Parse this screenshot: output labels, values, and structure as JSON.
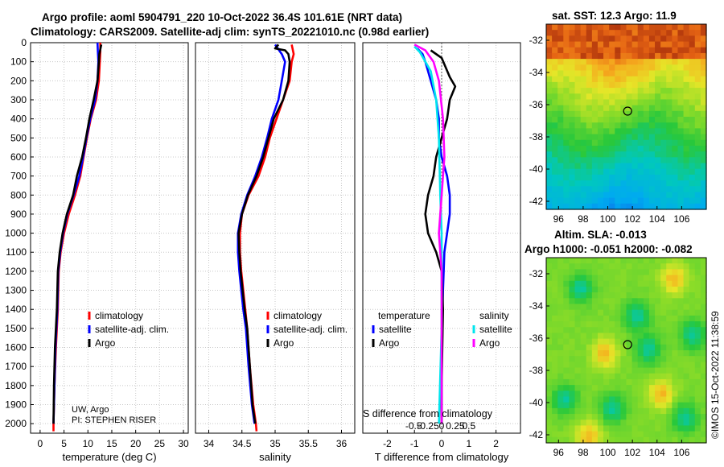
{
  "header": {
    "line1": "Argo profile: aoml 5904791_220 10-Oct-2022 36.4S 101.61E (NRT data)",
    "line2": "Climatology: CARS2009. Satellite-adj clim: synTS_20221010.nc (0.98d earlier)"
  },
  "colors": {
    "climatology": "#ff0000",
    "satellite": "#0000ff",
    "argo": "#000000",
    "cyan": "#00e5ee",
    "magenta": "#ff00ff"
  },
  "chart_data": [
    {
      "id": "temperature",
      "type": "line",
      "xlabel": "temperature (deg C)",
      "ylabel": "",
      "xlim": [
        -2,
        31
      ],
      "ylim": [
        2050,
        0
      ],
      "xticks": [
        0,
        5,
        10,
        15,
        20,
        25,
        30
      ],
      "yticks": [
        0,
        100,
        200,
        300,
        400,
        500,
        600,
        700,
        800,
        900,
        1000,
        1100,
        1200,
        1300,
        1400,
        1500,
        1600,
        1700,
        1800,
        1900,
        2000
      ],
      "legend": [
        "climatology",
        "satellite-adj. clim.",
        "Argo"
      ],
      "annotation": [
        "UW, Argo",
        "PI: STEPHEN RISER"
      ],
      "series": [
        {
          "name": "climatology",
          "color": "#ff0000",
          "points": [
            [
              12.6,
              0
            ],
            [
              12.6,
              50
            ],
            [
              12.5,
              100
            ],
            [
              12.3,
              200
            ],
            [
              11.7,
              300
            ],
            [
              10.6,
              400
            ],
            [
              9.8,
              500
            ],
            [
              9.1,
              600
            ],
            [
              8.4,
              700
            ],
            [
              7.3,
              800
            ],
            [
              6.0,
              900
            ],
            [
              5.0,
              1000
            ],
            [
              4.3,
              1100
            ],
            [
              3.9,
              1200
            ],
            [
              3.7,
              1400
            ],
            [
              3.3,
              1600
            ],
            [
              3.0,
              1800
            ],
            [
              2.8,
              2000
            ],
            [
              2.8,
              2040
            ]
          ]
        },
        {
          "name": "satellite-adj. clim.",
          "color": "#0000ff",
          "points": [
            [
              12.0,
              0
            ],
            [
              12.1,
              50
            ],
            [
              12.2,
              100
            ],
            [
              12.0,
              200
            ],
            [
              11.5,
              300
            ],
            [
              10.5,
              400
            ],
            [
              9.7,
              500
            ],
            [
              9.0,
              600
            ],
            [
              8.2,
              700
            ],
            [
              7.0,
              800
            ],
            [
              5.7,
              900
            ],
            [
              4.8,
              1000
            ],
            [
              4.2,
              1100
            ],
            [
              3.8,
              1200
            ],
            [
              3.6,
              1400
            ],
            [
              3.2,
              1600
            ],
            [
              3.0,
              1800
            ],
            [
              2.8,
              2000
            ]
          ]
        },
        {
          "name": "Argo",
          "color": "#000000",
          "points": [
            [
              12.8,
              10
            ],
            [
              12.4,
              60
            ],
            [
              12.3,
              100
            ],
            [
              12.0,
              200
            ],
            [
              11.2,
              300
            ],
            [
              10.3,
              400
            ],
            [
              9.6,
              500
            ],
            [
              8.8,
              600
            ],
            [
              7.7,
              700
            ],
            [
              6.9,
              800
            ],
            [
              5.6,
              900
            ],
            [
              4.7,
              1000
            ],
            [
              4.1,
              1100
            ],
            [
              3.7,
              1200
            ],
            [
              3.5,
              1400
            ],
            [
              3.1,
              1600
            ],
            [
              2.9,
              1800
            ],
            [
              2.8,
              2000
            ]
          ]
        }
      ]
    },
    {
      "id": "salinity",
      "type": "line",
      "xlabel": "salinity",
      "xlim": [
        33.8,
        36.2
      ],
      "ylim": [
        2050,
        0
      ],
      "xticks": [
        34,
        34.5,
        35,
        35.5,
        36
      ],
      "legend": [
        "climatology",
        "satellite-adj. clim.",
        "Argo"
      ],
      "series": [
        {
          "name": "climatology",
          "color": "#ff0000",
          "points": [
            [
              35.25,
              10
            ],
            [
              35.28,
              60
            ],
            [
              35.25,
              100
            ],
            [
              35.22,
              200
            ],
            [
              35.12,
              300
            ],
            [
              35.02,
              400
            ],
            [
              34.92,
              500
            ],
            [
              34.85,
              600
            ],
            [
              34.75,
              700
            ],
            [
              34.6,
              800
            ],
            [
              34.5,
              900
            ],
            [
              34.47,
              1000
            ],
            [
              34.47,
              1100
            ],
            [
              34.49,
              1200
            ],
            [
              34.52,
              1300
            ],
            [
              34.55,
              1400
            ],
            [
              34.58,
              1500
            ],
            [
              34.62,
              1700
            ],
            [
              34.67,
              1900
            ],
            [
              34.71,
              2000
            ],
            [
              34.72,
              2040
            ]
          ]
        },
        {
          "name": "satellite-adj. clim.",
          "color": "#0000ff",
          "points": [
            [
              35.0,
              10
            ],
            [
              35.1,
              60
            ],
            [
              35.15,
              100
            ],
            [
              35.1,
              200
            ],
            [
              35.05,
              300
            ],
            [
              34.95,
              400
            ],
            [
              34.88,
              500
            ],
            [
              34.8,
              600
            ],
            [
              34.7,
              700
            ],
            [
              34.58,
              800
            ],
            [
              34.49,
              900
            ],
            [
              34.44,
              1000
            ],
            [
              34.44,
              1100
            ],
            [
              34.46,
              1200
            ],
            [
              34.49,
              1300
            ],
            [
              34.52,
              1400
            ],
            [
              34.56,
              1500
            ],
            [
              34.6,
              1700
            ],
            [
              34.65,
              1900
            ],
            [
              34.69,
              2000
            ]
          ]
        },
        {
          "name": "Argo",
          "color": "#000000",
          "points": [
            [
              35.05,
              10
            ],
            [
              35.0,
              30
            ],
            [
              35.15,
              40
            ],
            [
              35.2,
              60
            ],
            [
              35.22,
              100
            ],
            [
              35.2,
              200
            ],
            [
              35.12,
              300
            ],
            [
              34.98,
              400
            ],
            [
              34.9,
              500
            ],
            [
              34.82,
              600
            ],
            [
              34.72,
              700
            ],
            [
              34.59,
              800
            ],
            [
              34.5,
              900
            ],
            [
              34.45,
              1000
            ],
            [
              34.46,
              1100
            ],
            [
              34.48,
              1200
            ],
            [
              34.51,
              1300
            ],
            [
              34.54,
              1400
            ],
            [
              34.58,
              1500
            ],
            [
              34.62,
              1700
            ],
            [
              34.66,
              1900
            ],
            [
              34.7,
              2000
            ]
          ]
        }
      ]
    },
    {
      "id": "difference",
      "type": "line",
      "xlabel": "T difference from climatology",
      "xlabel_top": "S difference from climatology",
      "xlim": [
        -2.9,
        2.9
      ],
      "ylim": [
        2050,
        0
      ],
      "xticks": [
        -2,
        -1,
        0,
        1,
        2
      ],
      "xticks_s": [
        "-0.5",
        "-0.25",
        "0",
        "0.25",
        "0.5"
      ],
      "legend_temperature": {
        "title": "temperature",
        "items": [
          "satellite",
          "Argo"
        ]
      },
      "legend_salinity": {
        "title": "salinity",
        "items": [
          "satellite",
          "Argo"
        ]
      },
      "series": [
        {
          "name": "temperature satellite",
          "color": "#0000ff",
          "points": [
            [
              -0.9,
              30
            ],
            [
              -0.7,
              60
            ],
            [
              -0.6,
              100
            ],
            [
              -0.4,
              200
            ],
            [
              -0.2,
              300
            ],
            [
              -0.1,
              400
            ],
            [
              -0.1,
              500
            ],
            [
              0,
              600
            ],
            [
              0.2,
              700
            ],
            [
              0.3,
              800
            ],
            [
              0.3,
              900
            ],
            [
              0.2,
              1000
            ],
            [
              0.1,
              1100
            ],
            [
              0.05,
              1300
            ],
            [
              0,
              1600
            ],
            [
              0,
              2000
            ]
          ]
        },
        {
          "name": "temperature Argo",
          "color": "#000000",
          "points": [
            [
              -0.4,
              40
            ],
            [
              0,
              80
            ],
            [
              0.3,
              180
            ],
            [
              0.5,
              230
            ],
            [
              0.3,
              300
            ],
            [
              0.2,
              400
            ],
            [
              0,
              500
            ],
            [
              -0.2,
              600
            ],
            [
              -0.3,
              700
            ],
            [
              -0.5,
              800
            ],
            [
              -0.6,
              900
            ],
            [
              -0.5,
              1000
            ],
            [
              -0.2,
              1100
            ],
            [
              0,
              1200
            ],
            [
              0.05,
              1400
            ],
            [
              0,
              1800
            ],
            [
              0,
              2000
            ]
          ]
        },
        {
          "name": "salinity satellite",
          "color": "#00e5ee",
          "points": [
            [
              -1.0,
              20
            ],
            [
              -0.8,
              50
            ],
            [
              -0.4,
              150
            ],
            [
              -0.2,
              300
            ],
            [
              -0.1,
              500
            ],
            [
              -0.05,
              800
            ],
            [
              0,
              1000
            ],
            [
              0,
              1500
            ],
            [
              -0.1,
              2000
            ]
          ]
        },
        {
          "name": "salinity Argo",
          "color": "#ff00ff",
          "points": [
            [
              -1.0,
              10
            ],
            [
              -0.6,
              40
            ],
            [
              -0.3,
              100
            ],
            [
              -0.1,
              200
            ],
            [
              0.05,
              400
            ],
            [
              0.1,
              600
            ],
            [
              0,
              800
            ],
            [
              -0.1,
              1000
            ],
            [
              0,
              1200
            ],
            [
              0,
              2000
            ]
          ]
        }
      ]
    }
  ],
  "maps": {
    "sst": {
      "title": "sat. SST: 12.3 Argo: 11.9",
      "yticks": [
        "-32",
        "-34",
        "-36",
        "-38",
        "-40",
        "-42"
      ],
      "xticks": [
        "96",
        "98",
        "100",
        "102",
        "104",
        "106"
      ]
    },
    "sla": {
      "title1": "Altim. SLA: -0.013",
      "title2": "Argo h1000: -0.051 h2000: -0.082",
      "yticks": [
        "-32",
        "-34",
        "-36",
        "-38",
        "-40",
        "-42"
      ],
      "xticks": [
        "96",
        "98",
        "100",
        "102",
        "104",
        "106"
      ]
    }
  },
  "footer": {
    "watermark": "©IMOS 15-Oct-2022 11:38:59"
  }
}
